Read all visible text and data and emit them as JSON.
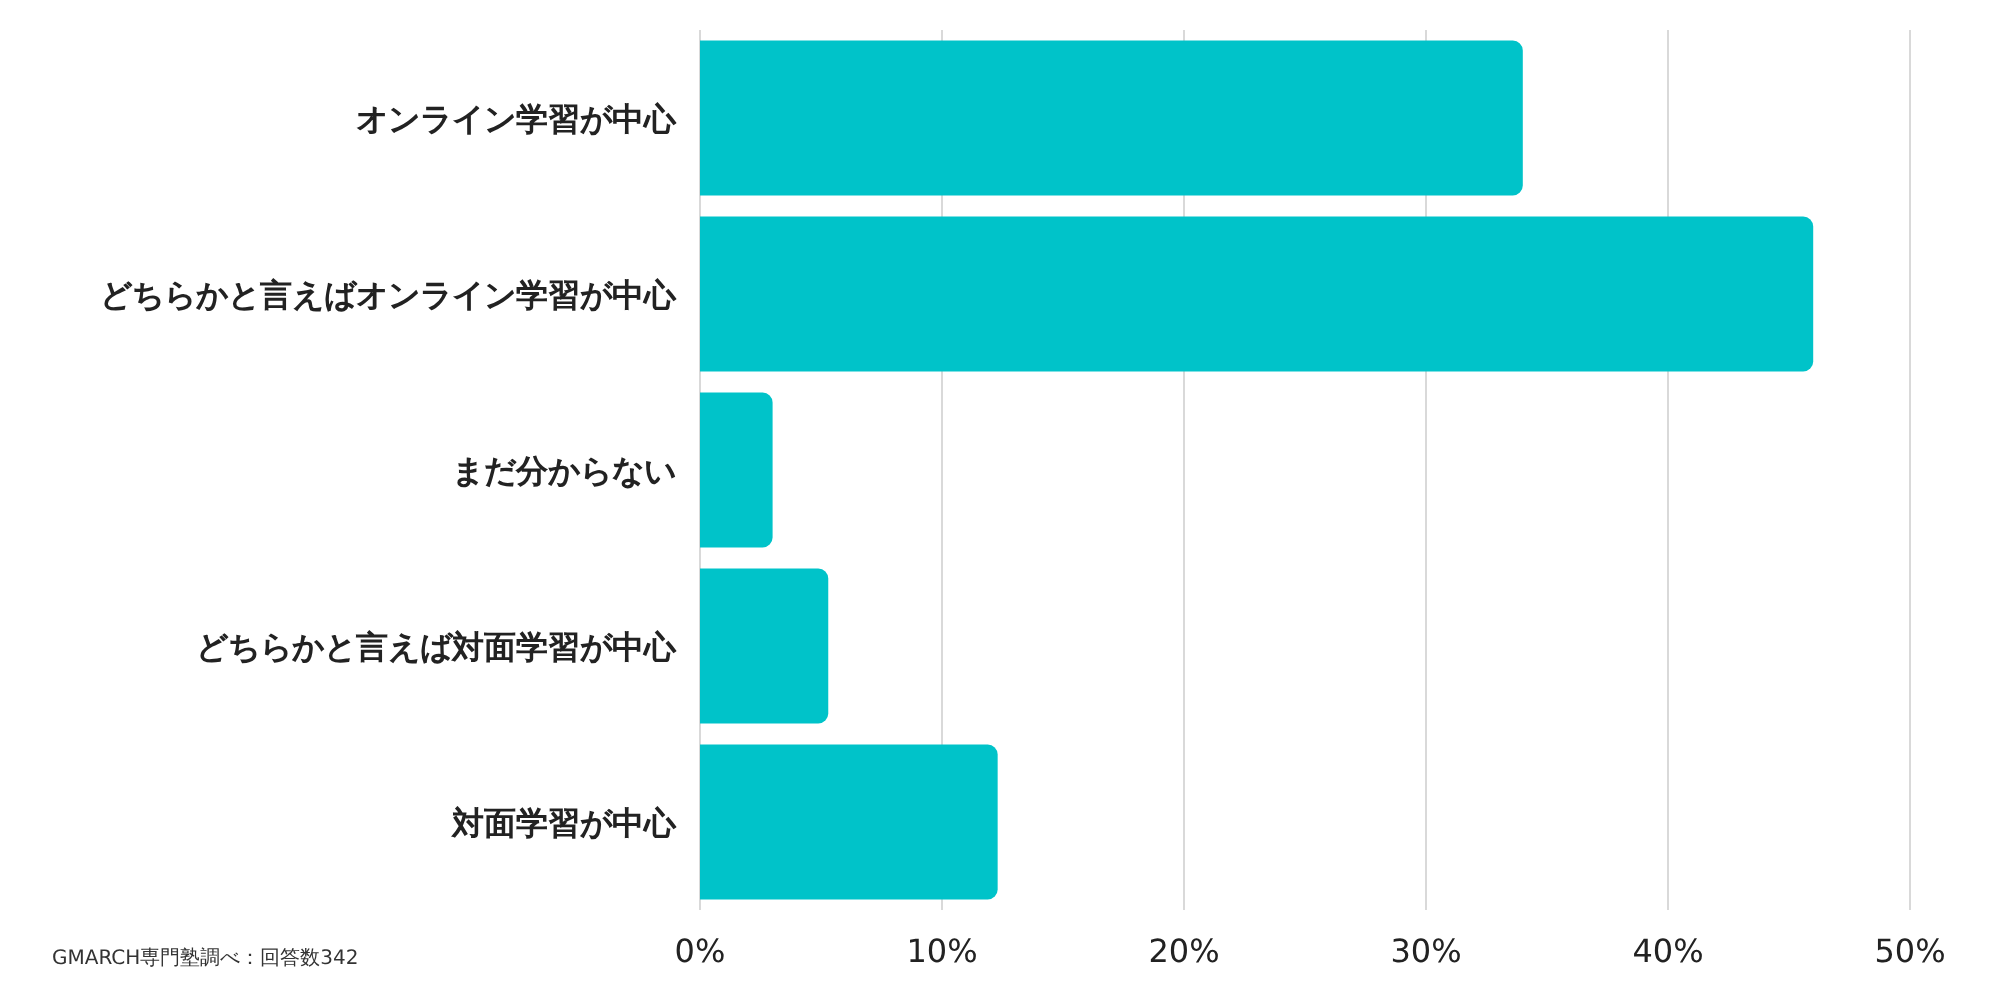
{
  "chart_data": {
    "type": "bar",
    "orientation": "horizontal",
    "categories": [
      "オンライン学習が中心",
      "どちらかと言えばオンライン学習が中心",
      "まだ分からない",
      "どちらかと言えば対面学習が中心",
      "対面学習が中心"
    ],
    "values": [
      34.0,
      46.0,
      3.0,
      5.3,
      12.3
    ],
    "color": "#00c3c9",
    "xlim": [
      0,
      50
    ],
    "xticks": [
      {
        "value": 0,
        "label": "0%"
      },
      {
        "value": 10,
        "label": "10%"
      },
      {
        "value": 20,
        "label": "20%"
      },
      {
        "value": 30,
        "label": "30%"
      },
      {
        "value": 40,
        "label": "40%"
      },
      {
        "value": 50,
        "label": "50%"
      }
    ],
    "grid": "x",
    "annotations": [
      "GMARCH専門塾調べ：回答数342"
    ]
  }
}
